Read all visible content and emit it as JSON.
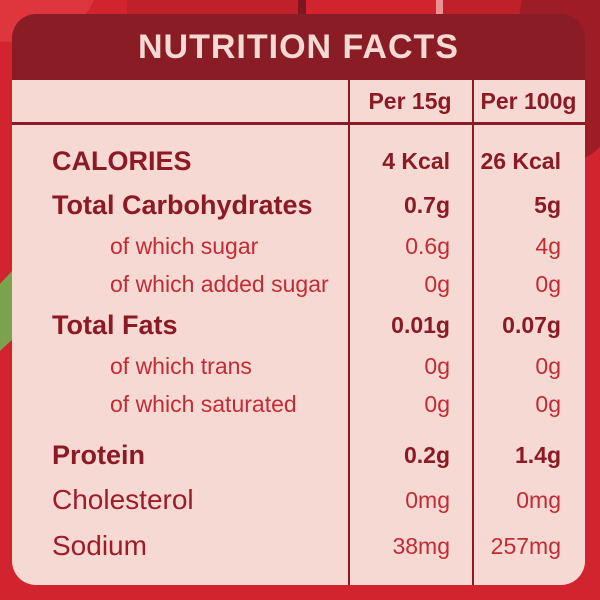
{
  "header": {
    "title": "NUTRITION FACTS"
  },
  "table": {
    "columns": [
      "Per 15g",
      "Per 100g"
    ],
    "rows": [
      {
        "label": "CALORIES",
        "per15": "4 Kcal",
        "per100": "26 Kcal",
        "style": "bold"
      },
      {
        "label": "Total Carbohydrates",
        "per15": "0.7g",
        "per100": "5g",
        "style": "bold"
      },
      {
        "label": "of which sugar",
        "per15": "0.6g",
        "per100": "4g",
        "style": "sub"
      },
      {
        "label": "of which added sugar",
        "per15": "0g",
        "per100": "0g",
        "style": "sub"
      },
      {
        "label": "Total Fats",
        "per15": "0.01g",
        "per100": "0.07g",
        "style": "bold"
      },
      {
        "label": "of which trans",
        "per15": "0g",
        "per100": "0g",
        "style": "sub"
      },
      {
        "label": "of which saturated",
        "per15": "0g",
        "per100": "0g",
        "style": "sub"
      },
      {
        "label": "Protein",
        "per15": "0.2g",
        "per100": "1.4g",
        "style": "bold",
        "gap": true
      },
      {
        "label": "Cholesterol",
        "per15": "0mg",
        "per100": "0mg",
        "style": "plain"
      },
      {
        "label": "Sodium",
        "per15": "38mg",
        "per100": "257mg",
        "style": "plain"
      }
    ]
  },
  "colors": {
    "background_red": "#d1242e",
    "banner_maroon": "#8a1c26",
    "panel_pink": "#f7d9d3",
    "text_maroon": "#8c1a24",
    "text_red": "#c32b34",
    "leaf_green": "#7da24e"
  }
}
